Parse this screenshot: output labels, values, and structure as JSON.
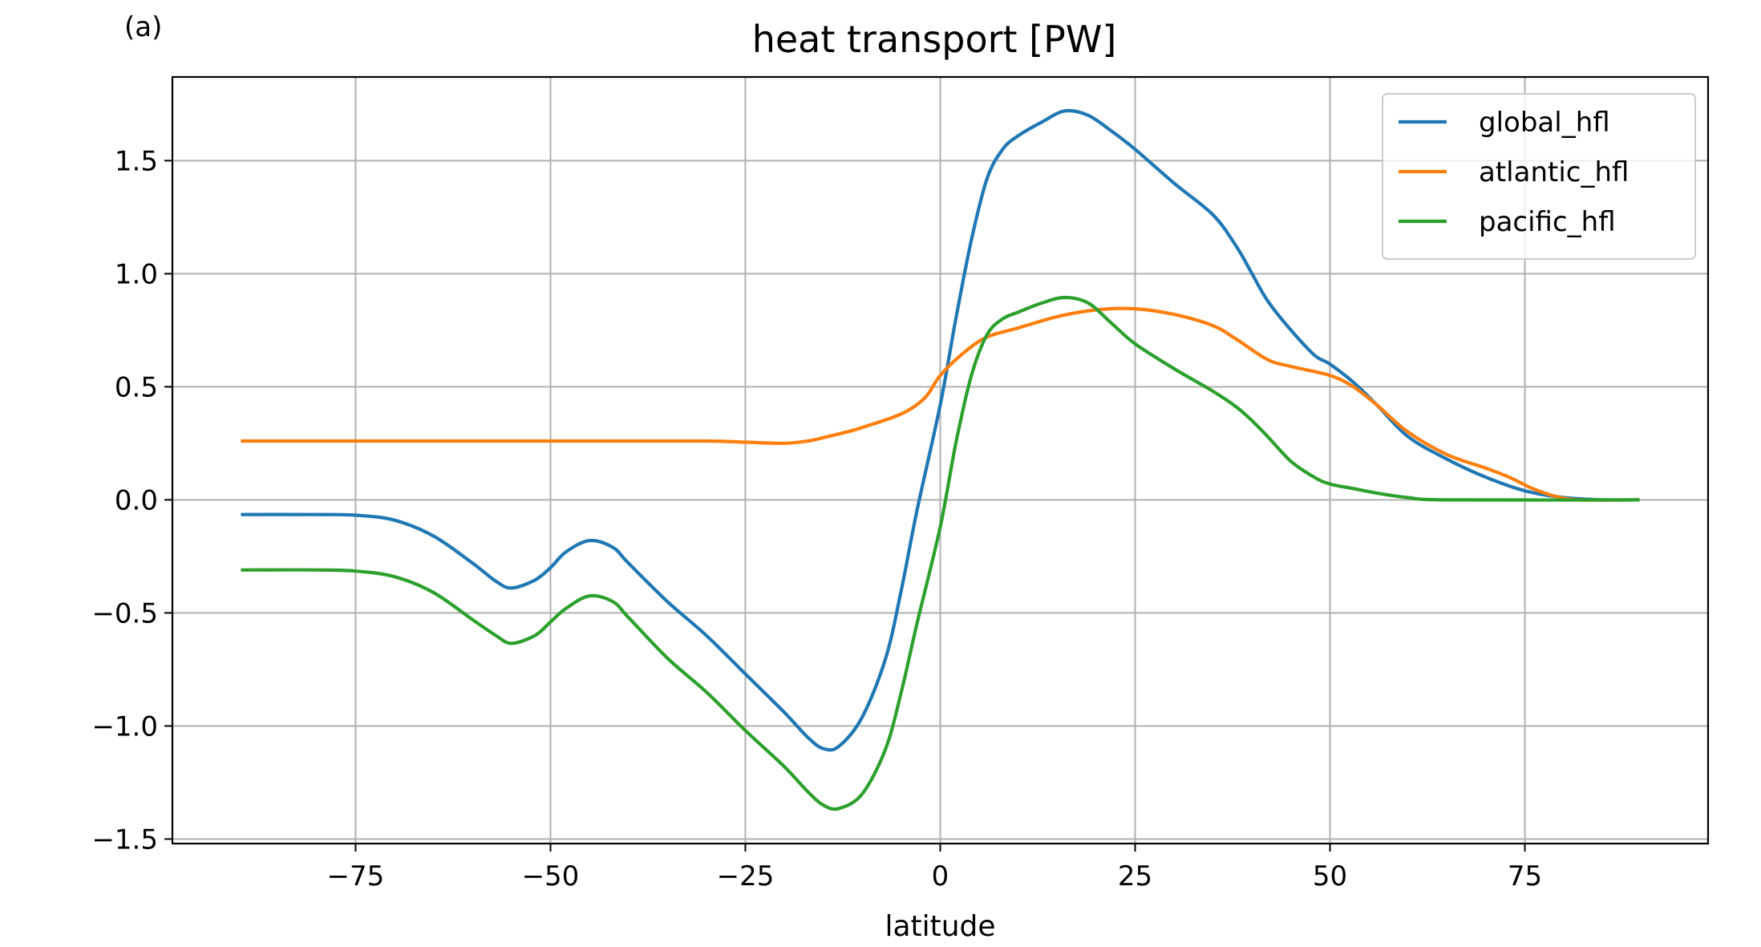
{
  "panel_label": "(a)",
  "chart_data": {
    "type": "line",
    "title": "heat transport [PW]",
    "xlabel": "latitude",
    "ylabel": "",
    "xlim": [
      -98.5,
      98.5
    ],
    "ylim": [
      -1.52,
      1.87
    ],
    "xticks": [
      -75,
      -50,
      -25,
      0,
      25,
      50,
      75
    ],
    "xtick_labels": [
      "−75",
      "−50",
      "−25",
      "0",
      "25",
      "50",
      "75"
    ],
    "yticks": [
      -1.5,
      -1.0,
      -0.5,
      0.0,
      0.5,
      1.0,
      1.5
    ],
    "ytick_labels": [
      "−1.5",
      "−1.0",
      "−0.5",
      "0.0",
      "0.5",
      "1.0",
      "1.5"
    ],
    "grid": true,
    "legend_position": "top-right",
    "series": [
      {
        "name": "global_hfl",
        "color": "#1f77b4",
        "points": [
          [
            -89.5,
            -0.065
          ],
          [
            -80,
            -0.065
          ],
          [
            -75,
            -0.068
          ],
          [
            -70,
            -0.09
          ],
          [
            -65,
            -0.16
          ],
          [
            -60,
            -0.28
          ],
          [
            -57,
            -0.36
          ],
          [
            -55,
            -0.39
          ],
          [
            -52,
            -0.355
          ],
          [
            -50,
            -0.3
          ],
          [
            -48,
            -0.23
          ],
          [
            -45,
            -0.18
          ],
          [
            -42,
            -0.21
          ],
          [
            -40,
            -0.28
          ],
          [
            -35,
            -0.45
          ],
          [
            -30,
            -0.6
          ],
          [
            -25,
            -0.77
          ],
          [
            -20,
            -0.94
          ],
          [
            -17,
            -1.05
          ],
          [
            -15,
            -1.1
          ],
          [
            -13,
            -1.09
          ],
          [
            -10,
            -0.96
          ],
          [
            -7,
            -0.7
          ],
          [
            -5,
            -0.4
          ],
          [
            -3,
            -0.05
          ],
          [
            0,
            0.42
          ],
          [
            2,
            0.8
          ],
          [
            4,
            1.15
          ],
          [
            6,
            1.42
          ],
          [
            8,
            1.55
          ],
          [
            10,
            1.61
          ],
          [
            13,
            1.67
          ],
          [
            16,
            1.72
          ],
          [
            19,
            1.7
          ],
          [
            22,
            1.63
          ],
          [
            25,
            1.55
          ],
          [
            30,
            1.4
          ],
          [
            35,
            1.26
          ],
          [
            38,
            1.12
          ],
          [
            40,
            1.0
          ],
          [
            42,
            0.88
          ],
          [
            45,
            0.75
          ],
          [
            48,
            0.64
          ],
          [
            50,
            0.6
          ],
          [
            53,
            0.52
          ],
          [
            56,
            0.42
          ],
          [
            60,
            0.28
          ],
          [
            65,
            0.18
          ],
          [
            70,
            0.1
          ],
          [
            75,
            0.04
          ],
          [
            80,
            0.01
          ],
          [
            85,
            0.0
          ],
          [
            89.5,
            0.0
          ]
        ]
      },
      {
        "name": "atlantic_hfl",
        "color": "#ff7f0e",
        "points": [
          [
            -89.5,
            0.26
          ],
          [
            -60,
            0.26
          ],
          [
            -40,
            0.26
          ],
          [
            -30,
            0.26
          ],
          [
            -25,
            0.255
          ],
          [
            -20,
            0.25
          ],
          [
            -17,
            0.26
          ],
          [
            -15,
            0.275
          ],
          [
            -12,
            0.3
          ],
          [
            -10,
            0.32
          ],
          [
            -5,
            0.38
          ],
          [
            -2,
            0.45
          ],
          [
            0,
            0.55
          ],
          [
            3,
            0.65
          ],
          [
            6,
            0.72
          ],
          [
            10,
            0.76
          ],
          [
            15,
            0.81
          ],
          [
            20,
            0.84
          ],
          [
            25,
            0.845
          ],
          [
            30,
            0.82
          ],
          [
            35,
            0.77
          ],
          [
            38,
            0.71
          ],
          [
            42,
            0.62
          ],
          [
            45,
            0.59
          ],
          [
            50,
            0.55
          ],
          [
            53,
            0.5
          ],
          [
            56,
            0.42
          ],
          [
            60,
            0.3
          ],
          [
            65,
            0.2
          ],
          [
            70,
            0.14
          ],
          [
            73,
            0.1
          ],
          [
            76,
            0.05
          ],
          [
            79,
            0.015
          ],
          [
            82,
            0.0
          ],
          [
            89.5,
            0.0
          ]
        ]
      },
      {
        "name": "pacific_hfl",
        "color": "#2ca02c",
        "points": [
          [
            -89.5,
            -0.31
          ],
          [
            -80,
            -0.31
          ],
          [
            -75,
            -0.315
          ],
          [
            -70,
            -0.34
          ],
          [
            -65,
            -0.41
          ],
          [
            -60,
            -0.53
          ],
          [
            -57,
            -0.6
          ],
          [
            -55,
            -0.635
          ],
          [
            -52,
            -0.6
          ],
          [
            -50,
            -0.54
          ],
          [
            -48,
            -0.48
          ],
          [
            -45,
            -0.425
          ],
          [
            -42,
            -0.45
          ],
          [
            -40,
            -0.52
          ],
          [
            -35,
            -0.7
          ],
          [
            -30,
            -0.85
          ],
          [
            -25,
            -1.02
          ],
          [
            -20,
            -1.18
          ],
          [
            -17,
            -1.29
          ],
          [
            -15,
            -1.35
          ],
          [
            -13,
            -1.365
          ],
          [
            -10,
            -1.3
          ],
          [
            -7,
            -1.1
          ],
          [
            -5,
            -0.85
          ],
          [
            -3,
            -0.55
          ],
          [
            0,
            -0.12
          ],
          [
            2,
            0.25
          ],
          [
            4,
            0.55
          ],
          [
            6,
            0.73
          ],
          [
            8,
            0.8
          ],
          [
            10,
            0.83
          ],
          [
            13,
            0.87
          ],
          [
            16,
            0.895
          ],
          [
            19,
            0.87
          ],
          [
            22,
            0.78
          ],
          [
            25,
            0.69
          ],
          [
            30,
            0.58
          ],
          [
            35,
            0.48
          ],
          [
            38,
            0.41
          ],
          [
            40,
            0.35
          ],
          [
            42,
            0.28
          ],
          [
            45,
            0.17
          ],
          [
            48,
            0.1
          ],
          [
            50,
            0.07
          ],
          [
            53,
            0.05
          ],
          [
            56,
            0.03
          ],
          [
            60,
            0.01
          ],
          [
            65,
            0.0
          ],
          [
            89.5,
            0.0
          ]
        ]
      }
    ]
  }
}
